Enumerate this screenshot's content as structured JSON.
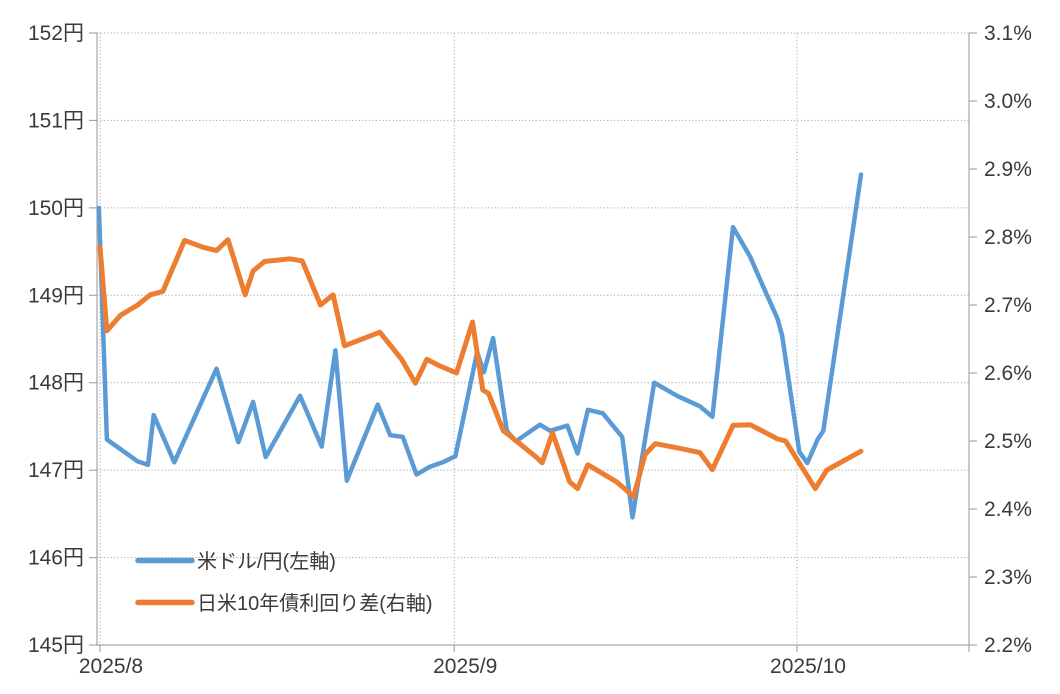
{
  "chart_data": {
    "type": "line",
    "title": "",
    "x_unit": "days since 2025-08-01",
    "x_domain": [
      0,
      67
    ],
    "left_axis": {
      "suffix": "円",
      "min": 145,
      "max": 152,
      "step": 1,
      "labels": [
        "152円",
        "151円",
        "150円",
        "149円",
        "148円",
        "147円",
        "146円",
        "145円"
      ],
      "values": [
        152,
        151,
        150,
        149,
        148,
        147,
        146,
        145
      ]
    },
    "right_axis": {
      "suffix": "%",
      "min": 2.2,
      "max": 3.1,
      "step": 0.1,
      "labels": [
        "3.1%",
        "3.0%",
        "2.9%",
        "2.8%",
        "2.7%",
        "2.6%",
        "2.5%",
        "2.4%",
        "2.3%",
        "2.2%"
      ],
      "values": [
        3.1,
        3.0,
        2.9,
        2.8,
        2.7,
        2.6,
        2.5,
        2.4,
        2.3,
        2.2
      ]
    },
    "x_axis": {
      "labels": [
        "2025/8",
        "2025/9",
        "2025/10"
      ],
      "label_days": [
        0,
        31,
        61
      ]
    },
    "grid": {
      "horizontal": true,
      "vertical": true,
      "style": "dotted"
    },
    "legend_position": "inside-bottom-left",
    "series": [
      {
        "name": "米ドル/円(左軸)",
        "axis": "left",
        "color": "#5B9BD5",
        "points": [
          [
            -0.1,
            150.0
          ],
          [
            0.6,
            147.35
          ],
          [
            3.3,
            147.1
          ],
          [
            4.2,
            147.06
          ],
          [
            4.7,
            147.63
          ],
          [
            6.5,
            147.09
          ],
          [
            10.2,
            148.16
          ],
          [
            12.1,
            147.32
          ],
          [
            13.4,
            147.78
          ],
          [
            14.5,
            147.15
          ],
          [
            17.5,
            147.85
          ],
          [
            19.4,
            147.27
          ],
          [
            20.6,
            148.37
          ],
          [
            21.6,
            146.88
          ],
          [
            24.3,
            147.75
          ],
          [
            25.4,
            147.4
          ],
          [
            26.5,
            147.38
          ],
          [
            27.7,
            146.95
          ],
          [
            28.9,
            147.04
          ],
          [
            30.0,
            147.09
          ],
          [
            31.1,
            147.16
          ],
          [
            33.0,
            148.35
          ],
          [
            33.6,
            148.12
          ],
          [
            34.4,
            148.51
          ],
          [
            35.6,
            147.45
          ],
          [
            36.4,
            147.33
          ],
          [
            38.5,
            147.52
          ],
          [
            39.4,
            147.45
          ],
          [
            40.9,
            147.51
          ],
          [
            41.8,
            147.19
          ],
          [
            42.7,
            147.69
          ],
          [
            44.0,
            147.65
          ],
          [
            45.7,
            147.38
          ],
          [
            46.6,
            146.46
          ],
          [
            48.5,
            148.0
          ],
          [
            50.5,
            147.85
          ],
          [
            52.5,
            147.73
          ],
          [
            53.6,
            147.61
          ],
          [
            55.4,
            149.78
          ],
          [
            56.9,
            149.44
          ],
          [
            57.9,
            149.14
          ],
          [
            59.3,
            148.73
          ],
          [
            59.7,
            148.54
          ],
          [
            61.2,
            147.21
          ],
          [
            61.9,
            147.08
          ],
          [
            62.8,
            147.35
          ],
          [
            63.3,
            147.45
          ],
          [
            66.6,
            150.38
          ]
        ]
      },
      {
        "name": "日米10年債利回り差(右軸)",
        "axis": "right",
        "color": "#ED7D31",
        "points": [
          [
            0.0,
            2.785
          ],
          [
            0.6,
            2.662
          ],
          [
            1.8,
            2.685
          ],
          [
            3.3,
            2.7
          ],
          [
            4.4,
            2.715
          ],
          [
            5.5,
            2.72
          ],
          [
            7.4,
            2.795
          ],
          [
            9.0,
            2.785
          ],
          [
            10.2,
            2.78
          ],
          [
            11.2,
            2.796
          ],
          [
            12.7,
            2.715
          ],
          [
            13.4,
            2.75
          ],
          [
            14.4,
            2.764
          ],
          [
            16.6,
            2.768
          ],
          [
            17.7,
            2.765
          ],
          [
            19.3,
            2.7
          ],
          [
            20.4,
            2.715
          ],
          [
            21.4,
            2.64
          ],
          [
            24.5,
            2.66
          ],
          [
            26.4,
            2.62
          ],
          [
            27.6,
            2.585
          ],
          [
            28.6,
            2.62
          ],
          [
            29.8,
            2.61
          ],
          [
            31.2,
            2.6
          ],
          [
            32.6,
            2.675
          ],
          [
            33.5,
            2.575
          ],
          [
            34.0,
            2.57
          ],
          [
            35.3,
            2.515
          ],
          [
            35.7,
            2.51
          ],
          [
            38.2,
            2.476
          ],
          [
            38.7,
            2.468
          ],
          [
            39.6,
            2.512
          ],
          [
            41.1,
            2.44
          ],
          [
            41.8,
            2.43
          ],
          [
            42.7,
            2.465
          ],
          [
            45.2,
            2.44
          ],
          [
            45.9,
            2.43
          ],
          [
            46.7,
            2.418
          ],
          [
            47.7,
            2.48
          ],
          [
            48.6,
            2.496
          ],
          [
            50.5,
            2.49
          ],
          [
            52.5,
            2.483
          ],
          [
            53.6,
            2.458
          ],
          [
            55.4,
            2.523
          ],
          [
            56.9,
            2.524
          ],
          [
            59.3,
            2.503
          ],
          [
            60.0,
            2.5
          ],
          [
            61.3,
            2.465
          ],
          [
            62.6,
            2.43
          ],
          [
            63.6,
            2.457
          ],
          [
            66.6,
            2.485
          ]
        ]
      }
    ]
  },
  "legend": {
    "items": [
      {
        "label": "米ドル/円(左軸)",
        "color": "#5B9BD5"
      },
      {
        "label": "日米10年債利回り差(右軸)",
        "color": "#ED7D31"
      }
    ]
  },
  "colors": {
    "usdjpy_line": "#5B9BD5",
    "spread_line": "#ED7D31",
    "gridline": "#A6A6A6",
    "axis_line": "#A6A6A6",
    "label_text": "#3B3B3B",
    "background": "#FFFFFF"
  }
}
